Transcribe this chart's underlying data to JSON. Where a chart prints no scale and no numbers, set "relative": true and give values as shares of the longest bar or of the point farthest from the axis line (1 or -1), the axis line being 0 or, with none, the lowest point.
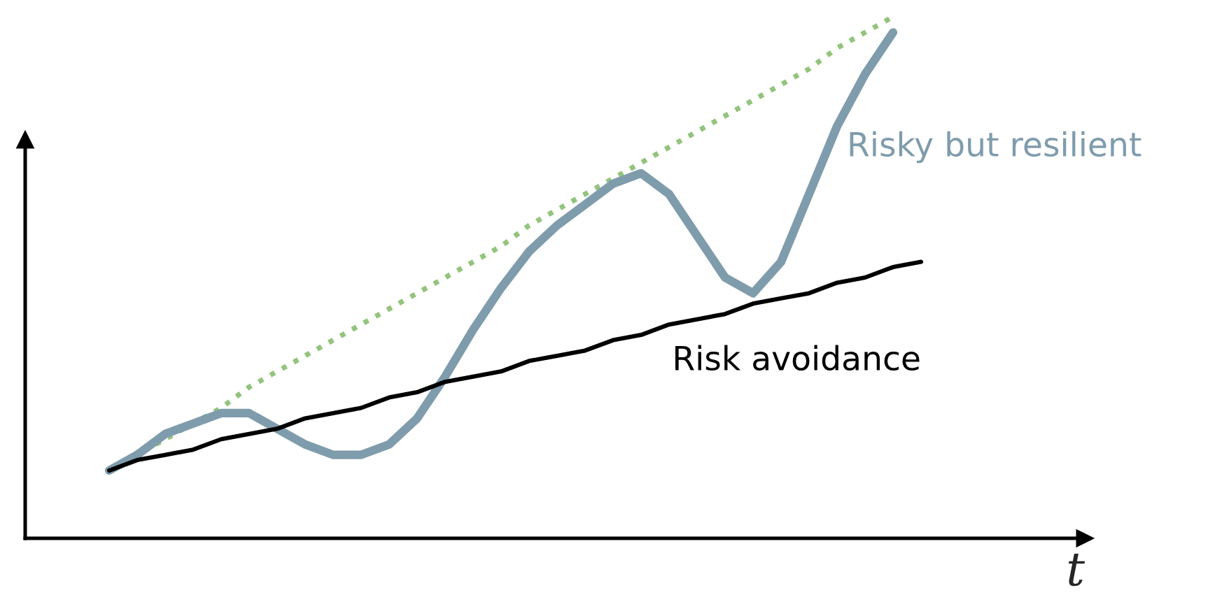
{
  "chart_data": {
    "type": "line",
    "relative": true,
    "xlabel": "t",
    "legend": false,
    "tick_labels": false,
    "marker": "none",
    "categories": [
      null,
      null,
      null,
      null,
      null,
      null,
      null,
      null,
      null,
      null,
      null,
      null,
      null,
      null,
      null,
      null,
      null,
      null,
      null,
      null,
      null,
      null,
      null,
      null,
      null,
      null,
      null,
      null,
      null,
      null
    ],
    "series": [
      {
        "color": "#93c47d",
        "line_style": "dotted",
        "values": [
          0.13,
          0.16,
          0.19,
          0.22,
          0.25,
          0.29,
          0.32,
          0.35,
          0.38,
          0.41,
          0.44,
          0.47,
          0.5,
          0.53,
          0.56,
          0.6,
          0.63,
          0.66,
          0.69,
          0.72,
          0.75,
          0.78,
          0.81,
          0.84,
          0.87,
          0.9,
          0.94,
          0.97,
          1.0,
          null
        ]
      },
      {
        "name": "Risky but resilient",
        "color": "#7f9cac",
        "line_style": "solid",
        "values": [
          0.13,
          0.16,
          0.2,
          0.22,
          0.24,
          0.24,
          0.21,
          0.18,
          0.16,
          0.16,
          0.18,
          0.23,
          0.31,
          0.4,
          0.48,
          0.55,
          0.6,
          0.64,
          0.68,
          0.7,
          0.66,
          0.58,
          0.5,
          0.47,
          0.53,
          0.66,
          0.79,
          0.89,
          0.97,
          null
        ]
      },
      {
        "name": "Risk avoidance",
        "color": "#000000",
        "line_style": "solid",
        "values": [
          0.13,
          0.15,
          0.16,
          0.17,
          0.19,
          0.2,
          0.21,
          0.23,
          0.24,
          0.25,
          0.27,
          0.28,
          0.3,
          0.31,
          0.32,
          0.34,
          0.35,
          0.36,
          0.38,
          0.39,
          0.41,
          0.42,
          0.43,
          0.45,
          0.46,
          0.47,
          0.49,
          0.5,
          0.52,
          0.53
        ]
      }
    ]
  }
}
